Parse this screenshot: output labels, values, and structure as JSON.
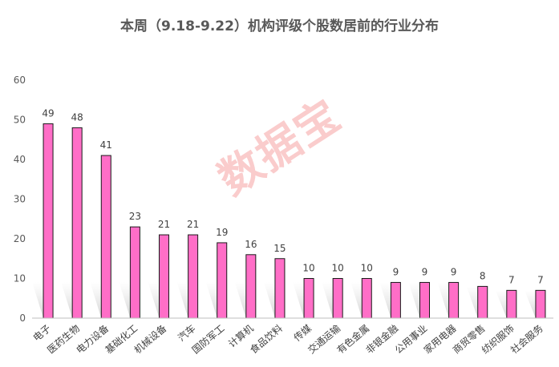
{
  "chart_data": {
    "type": "bar",
    "title": "本周（9.18-9.22）机构评级个股数居前的行业分布",
    "categories": [
      "电子",
      "医药生物",
      "电力设备",
      "基础化工",
      "机械设备",
      "汽车",
      "国防军工",
      "计算机",
      "食品饮料",
      "传媒",
      "交通运输",
      "有色金属",
      "非银金融",
      "公用事业",
      "家用电器",
      "商贸零售",
      "纺织服饰",
      "社会服务"
    ],
    "values": [
      49,
      48,
      41,
      23,
      21,
      21,
      19,
      16,
      15,
      10,
      10,
      10,
      9,
      9,
      9,
      8,
      7,
      7
    ],
    "ylim": [
      0,
      60
    ],
    "yticks": [
      0,
      10,
      20,
      30,
      40,
      50,
      60
    ],
    "grid": false,
    "bar_color": "#ff6ec7",
    "bar_edge_color": "#1a1a1a"
  },
  "watermark": "数据宝"
}
